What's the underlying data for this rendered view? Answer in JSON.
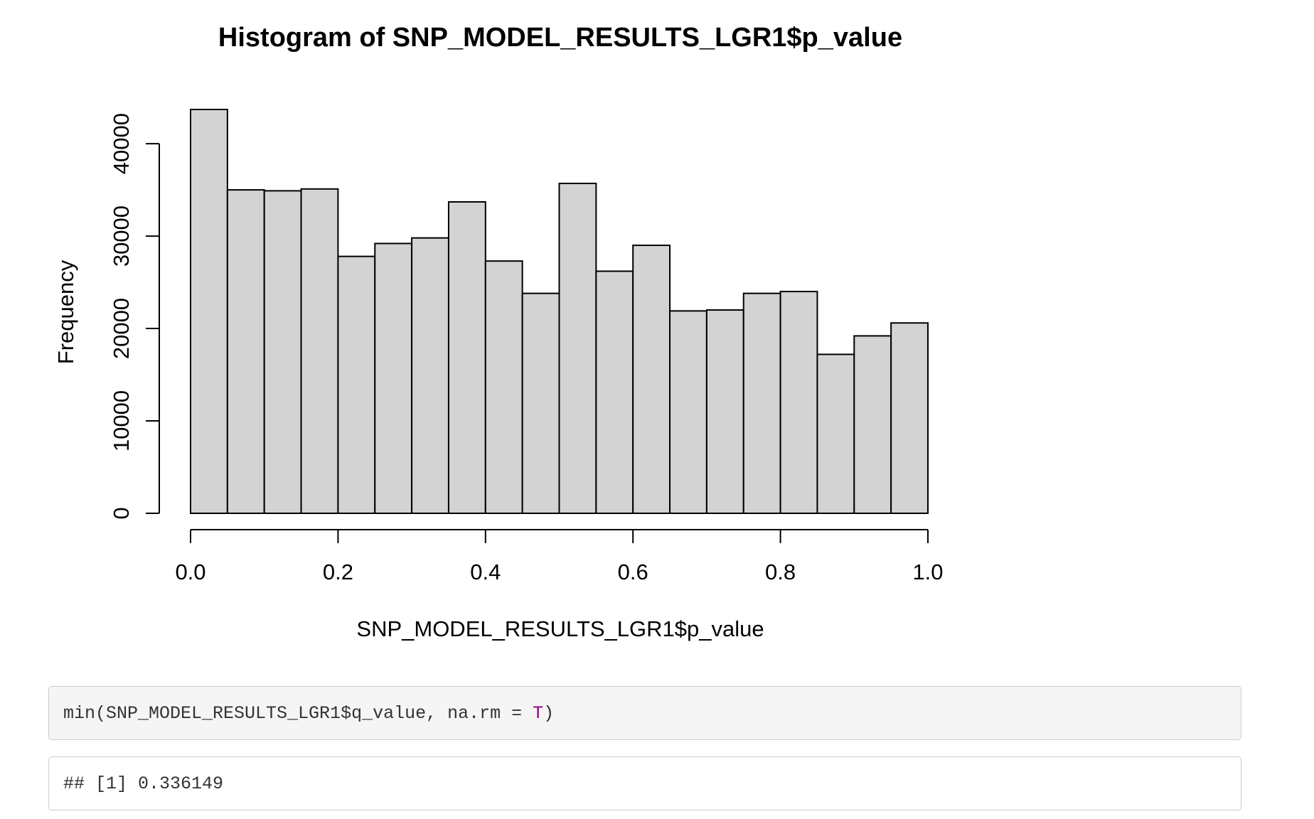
{
  "chart_data": {
    "type": "histogram",
    "title": "Histogram of SNP_MODEL_RESULTS_LGR1$p_value",
    "xlabel": "SNP_MODEL_RESULTS_LGR1$p_value",
    "ylabel": "Frequency",
    "xlim": [
      0,
      1
    ],
    "ylim": [
      0,
      43700
    ],
    "x_ticks": [
      0.0,
      0.2,
      0.4,
      0.6,
      0.8,
      1.0
    ],
    "x_tick_labels": [
      "0.0",
      "0.2",
      "0.4",
      "0.6",
      "0.8",
      "1.0"
    ],
    "y_ticks": [
      0,
      10000,
      20000,
      30000,
      40000
    ],
    "y_tick_labels": [
      "0",
      "10000",
      "20000",
      "30000",
      "40000"
    ],
    "bin_edges": [
      0.0,
      0.05,
      0.1,
      0.15,
      0.2,
      0.25,
      0.3,
      0.35,
      0.4,
      0.45,
      0.5,
      0.55,
      0.6,
      0.65,
      0.7,
      0.75,
      0.8,
      0.85,
      0.9,
      0.95,
      1.0
    ],
    "values": [
      43700,
      35000,
      34900,
      35100,
      27800,
      29200,
      29800,
      33700,
      27300,
      23800,
      35700,
      26200,
      29000,
      21900,
      22000,
      23800,
      24000,
      17200,
      19200,
      20600
    ],
    "bar_fill": "#d3d3d3",
    "bar_stroke": "#000000",
    "grid": false
  },
  "code_input": {
    "prefix": "min(SNP_MODEL_RESULTS_LGR1$q_value, na.rm = ",
    "keyword": "T",
    "suffix": ")",
    "keyword_color": "#990073"
  },
  "code_output": {
    "text": "## [1] 0.336149"
  }
}
